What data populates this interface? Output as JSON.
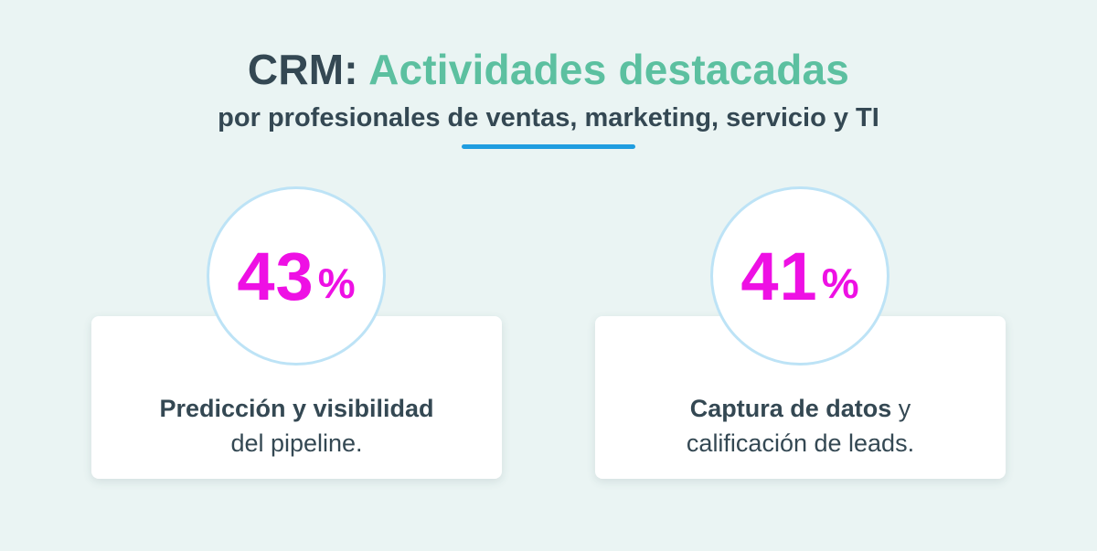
{
  "header": {
    "title_prefix": "CRM:",
    "title_accent": "Actividades destacadas",
    "subtitle": "por profesionales de ventas, marketing, servicio y TI"
  },
  "stats": [
    {
      "value": "43",
      "unit": "%",
      "label_bold": "Predicción y visibilidad",
      "label_regular": "del pipeline."
    },
    {
      "value": "41",
      "unit": "%",
      "label_bold": "Captura de datos",
      "label_regular_inline": " y",
      "label_regular": "calificación de leads."
    }
  ],
  "colors": {
    "background": "#eaf4f3",
    "heading": "#344853",
    "accent": "#5cc0a0",
    "stat": "#ee10e4",
    "ring": "#bde3f6",
    "underline": "#1f9de0"
  }
}
